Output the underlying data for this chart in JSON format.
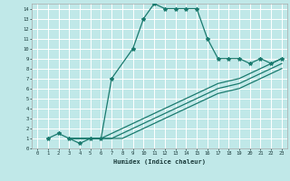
{
  "xlabel": "Humidex (Indice chaleur)",
  "background_color": "#c0e8e8",
  "grid_color": "#ffffff",
  "line_color": "#1a7a6e",
  "xlim": [
    -0.5,
    23.5
  ],
  "ylim": [
    0,
    14.5
  ],
  "xticks": [
    0,
    1,
    2,
    3,
    4,
    5,
    6,
    7,
    8,
    9,
    10,
    11,
    12,
    13,
    14,
    15,
    16,
    17,
    18,
    19,
    20,
    21,
    22,
    23
  ],
  "yticks": [
    0,
    1,
    2,
    3,
    4,
    5,
    6,
    7,
    8,
    9,
    10,
    11,
    12,
    13,
    14
  ],
  "lines": [
    {
      "x": [
        1,
        2,
        3,
        4,
        5,
        6,
        7,
        9,
        10,
        11,
        12,
        13,
        14,
        15,
        16,
        17,
        18,
        19,
        20,
        21,
        22,
        23
      ],
      "y": [
        1,
        1.5,
        1,
        0.5,
        1,
        1,
        7,
        10,
        13,
        14.5,
        14,
        14,
        14,
        14,
        11,
        9,
        9,
        9,
        8.5,
        9,
        8.5,
        9
      ],
      "marker": "*",
      "markersize": 3,
      "linewidth": 0.9,
      "linestyle": "-"
    },
    {
      "x": [
        3,
        5,
        6,
        7,
        8,
        10,
        11,
        13,
        15,
        17,
        19,
        21,
        23
      ],
      "y": [
        1,
        1,
        1,
        1.5,
        2,
        3,
        3.5,
        4.5,
        5.5,
        6.5,
        7,
        8,
        9
      ],
      "marker": null,
      "markersize": 0,
      "linewidth": 0.9,
      "linestyle": "-"
    },
    {
      "x": [
        3,
        5,
        6,
        7,
        8,
        10,
        11,
        13,
        15,
        17,
        19,
        21,
        23
      ],
      "y": [
        1,
        1,
        1,
        1,
        1.5,
        2.5,
        3,
        4,
        5,
        6,
        6.5,
        7.5,
        8.5
      ],
      "marker": null,
      "markersize": 0,
      "linewidth": 0.9,
      "linestyle": "-"
    },
    {
      "x": [
        3,
        5,
        6,
        7,
        8,
        10,
        11,
        13,
        15,
        17,
        19,
        21,
        23
      ],
      "y": [
        1,
        1,
        1,
        1,
        1,
        2,
        2.5,
        3.5,
        4.5,
        5.5,
        6,
        7,
        8
      ],
      "marker": null,
      "markersize": 0,
      "linewidth": 0.9,
      "linestyle": "-"
    }
  ]
}
